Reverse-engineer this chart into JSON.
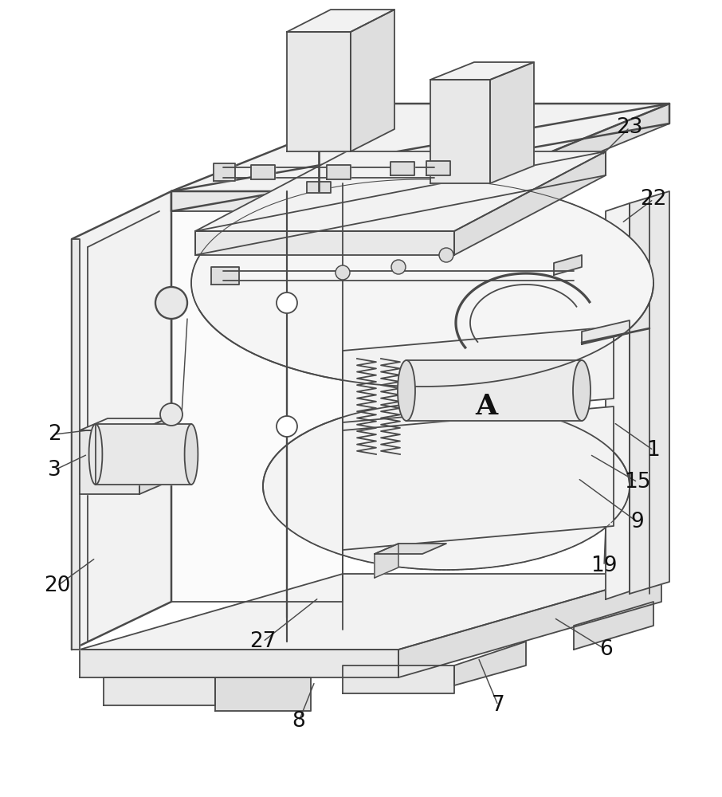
{
  "bg_color": "#ffffff",
  "line_color": "#4a4a4a",
  "line_width": 1.3,
  "thick_line": 1.8,
  "label_color": "#111111",
  "label_fontsize": 19,
  "fill_light": "#f2f2f2",
  "fill_mid": "#e8e8e8",
  "fill_dark": "#dedede",
  "fill_white": "#fafafa"
}
